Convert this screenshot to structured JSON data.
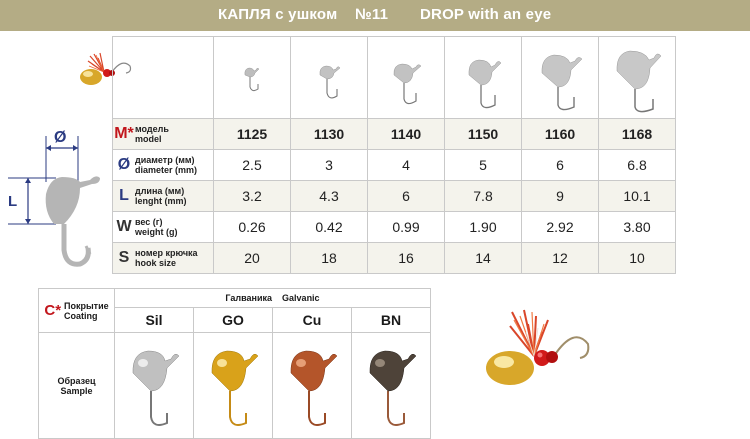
{
  "header": {
    "title_ru": "КАПЛЯ с ушком",
    "number": "№11",
    "title_en": "DROP with an eye"
  },
  "labels": {
    "model": {
      "symbol": "M*",
      "ru": "модель",
      "en": "model"
    },
    "diameter": {
      "symbol": "Ø",
      "ru": "диаметр (мм)",
      "en": "diameter (mm)"
    },
    "length": {
      "symbol": "L",
      "ru": "длина (мм)",
      "en": "lenght (mm)"
    },
    "weight": {
      "symbol": "W",
      "ru": "вес (г)",
      "en": "weight (g)"
    },
    "hook": {
      "symbol": "S",
      "ru": "номер крючка",
      "en": "hook size"
    }
  },
  "models": [
    "1125",
    "1130",
    "1140",
    "1150",
    "1160",
    "1168"
  ],
  "diameter": [
    "2.5",
    "3",
    "4",
    "5",
    "6",
    "6.8"
  ],
  "length": [
    "3.2",
    "4.3",
    "6",
    "7.8",
    "9",
    "10.1"
  ],
  "weight": [
    "0.26",
    "0.42",
    "0.99",
    "1.90",
    "2.92",
    "3.80"
  ],
  "hook_size": [
    "20",
    "18",
    "16",
    "14",
    "12",
    "10"
  ],
  "diagram": {
    "diameter_symbol": "Ø",
    "length_symbol": "L"
  },
  "coating": {
    "symbol": "C*",
    "ru": "Покрытие",
    "en": "Coating",
    "group_ru": "Галваника",
    "group_en": "Galvanic",
    "sample_ru": "Образец",
    "sample_en": "Sample",
    "types": [
      "Sil",
      "GO",
      "Cu",
      "BN"
    ],
    "colors": [
      "#c0c0c0",
      "#d9a21a",
      "#b4552a",
      "#4e4339"
    ]
  },
  "colors": {
    "header_bg": "#b4ac85",
    "accent_red": "#c2161c",
    "accent_blue": "#2b3b82"
  }
}
